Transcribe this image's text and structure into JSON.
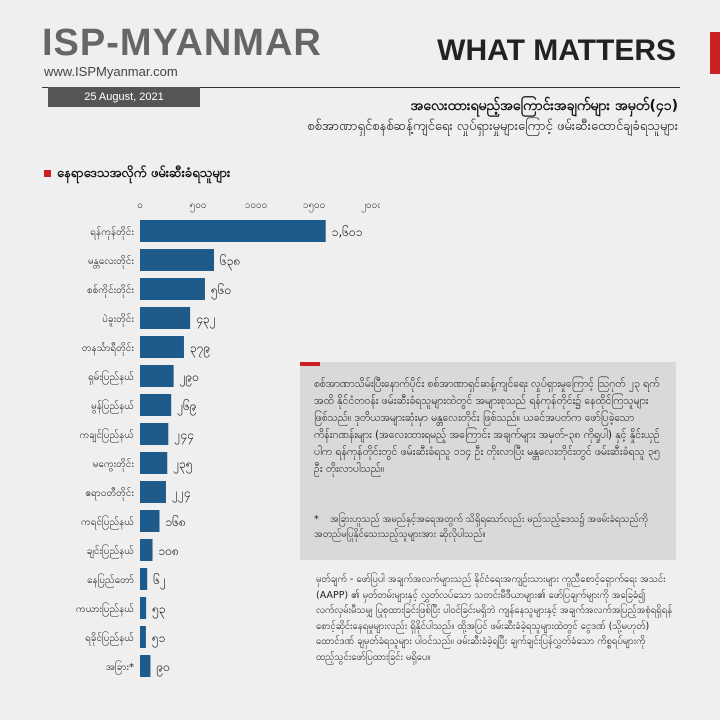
{
  "header": {
    "brand": "ISP-MYANMAR",
    "site": "www.ISPMyanmar.com",
    "series_name": "WHAT MATTERS",
    "date": "25 August, 2021"
  },
  "titles": {
    "main": "အလေးထားရမည့်အကြောင်းအချက်များ အမှတ်(၄၁)",
    "sub": "စစ်အာဏာရှင်စနစ်ဆန့်ကျင်ရေး လှုပ်ရှားမှုများကြောင့် ဖမ်းဆီးထောင်ချခံရသူများ"
  },
  "section_title": "နေရာဒေသအလိုက် ဖမ်းဆီးခံရသူများ",
  "chart_data": {
    "type": "bar",
    "orientation": "horizontal",
    "categories": [
      "ရန်ကုန်တိုင်း",
      "မန္တလေးတိုင်း",
      "စစ်ကိုင်းတိုင်း",
      "ပဲခူးတိုင်း",
      "တနင်္သာရီတိုင်း",
      "ရှမ်းပြည်နယ်",
      "မွန်ပြည်နယ်",
      "ကချင်ပြည်နယ်",
      "မကွေးတိုင်း",
      "ဧရာဝတီတိုင်း",
      "ကရင်ပြည်နယ်",
      "ချင်းပြည်နယ်",
      "နေပြည်တော်",
      "ကယားပြည်နယ်",
      "ရခိုင်ပြည်နယ်",
      "အခြား*"
    ],
    "values": [
      1601,
      638,
      560,
      432,
      379,
      290,
      269,
      244,
      235,
      224,
      168,
      108,
      62,
      53,
      51,
      90
    ],
    "value_labels": [
      "၁,၆၀၁",
      "၆၃၈",
      "၅၆၀",
      "၄၃၂",
      "၃၇၉",
      "၂၉၀",
      "၂၆၉",
      "၂၄၄",
      "၂၃၅",
      "၂၂၄",
      "၁၆၈",
      "၁၀၈",
      "၆၂",
      "၅၃",
      "၅၁",
      "၉၀"
    ],
    "ticks": [
      0,
      500,
      1000,
      1500,
      2000
    ],
    "tick_labels": [
      "၀",
      "၅၀၀",
      "၁၀၀၀",
      "၁၅၀၀",
      "၂၀၀၀"
    ],
    "xlim": [
      0,
      2000
    ],
    "bar_color": "#1e5a8a",
    "title": "",
    "xlabel": "",
    "ylabel": ""
  },
  "info": {
    "paragraph": "စစ်အာဏာသိမ်းပြီးနောက်ပိုင်း စစ်အာဏာရှင်ဆန့်ကျင်ရေး လှုပ်ရှားမှုကြောင့် ဩဂုတ် ၂၃ ရက်အထိ နိုင်ငံတဝန်း ဖမ်းဆီးခံရသူများထဲတွင် အများစုသည် ရန်ကုန်တိုင်း၌ နေထိုင်ကြသူများဖြစ်သည်။ ဒုတိယအများဆုံးမှာ မန္တလေးတိုင်း ဖြစ်သည်။ ယခင်အပတ်က ဖော်ပြခဲ့သော ကိန်းဂဏန်းများ (အလေးထားရမည့် အကြောင်း အချက်များ အမှတ်-၃၈ ကိုရှုပါ) နှင့် နှိုင်းယှဉ်ပါက ရန်ကုန်တိုင်းတွင် ဖမ်းဆီးခံရသူ ၁၁၄ ဦး တိုးလာပြီး မန္တလေးတိုင်းတွင် ဖမ်းဆီးခံရသူ ၃၅ ဦး တိုးလာပါသည်။",
    "footnote_mark": "*",
    "footnote": "အခြားဟူသည် အမည်နှင့်အရေအတွက် သိရှိရသော်လည်း မည်သည့်ဒေသ၌ အဖမ်းခံရသည်ကို အတည်မပြုနိုင်သေးသည့်သူများအား ဆိုလိုပါသည်။"
  },
  "note": {
    "label": "မှတ်ချက် -",
    "text": "ဖော်ပြပါ အချက်အလက်များသည် နိုင်ငံရေးအကျဉ်းသားများ ကူညီစောင့်ရှောက်ရေး အသင်း (AAPP) ၏ မှတ်တမ်းများနှင့် လွှတ်လပ်သော သတင်းမီဒီယာများ၏ ဖော်ပြချက်များကို အခြေခံ၍ လက်လှမ်းမီသမျှ ပြုစုထားခြင်းဖြစ်ပြီး ပါဝင်ခြင်းမရှိဘဲ ကျန်နေသူများနှင့် အချက်အလက်အပြည့်အစုံရရှိရန် စောင့်ဆိုင်းနေရမှုများလည်း ရှိနိုင်ပါသည်။ ထို့အပြင် ဖမ်းဆီးခံခဲ့ရသူများထဲတွင် ငွေဒဏ် (သို့မဟုတ်) ထောင်ဒဏ် ချမှတ်ခံရသူများ ပါဝင်သည်။ ဖမ်းဆီးခံခဲ့ရပြီး ချက်ချင်းပြန်လွှတ်ခံသော ကိစ္စရပ်များကို ထည့်သွင်းဖော်ပြထားခြင်း မရှိပေ။"
  }
}
